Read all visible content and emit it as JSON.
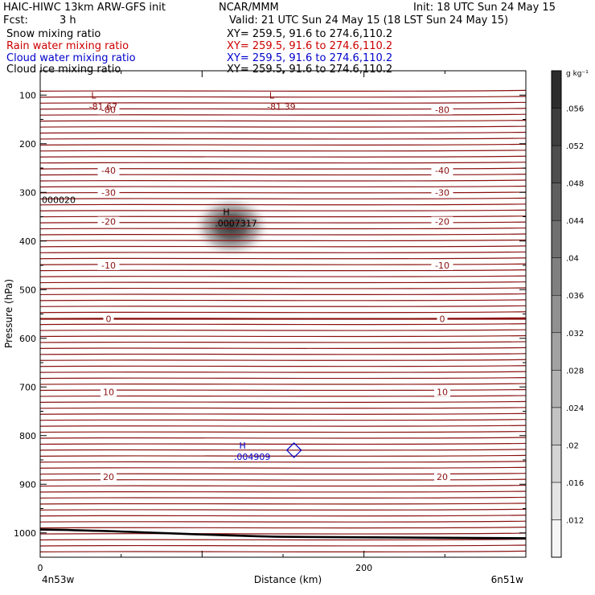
{
  "header": {
    "model": "HAIC-HIWC 13km ARW-GFS init",
    "org": "NCAR/MMM",
    "init": "Init: 18 UTC Sun 24 May 15",
    "fcst_label": "Fcst:",
    "fcst_value": "3 h",
    "valid": "Valid: 21 UTC Sun 24 May 15 (18 LST Sun 24 May 15)"
  },
  "fields": [
    {
      "name": "Snow mixing ratio",
      "xy": "XY= 259.5, 91.6 to 274.6,110.2",
      "color": "#000000"
    },
    {
      "name": "Rain water mixing ratio",
      "xy": "XY= 259.5, 91.6 to 274.6,110.2",
      "color": "#cc0000"
    },
    {
      "name": "Cloud water mixing ratio",
      "xy": "XY= 259.5, 91.6 to 274.6,110.2",
      "color": "#0000cc"
    },
    {
      "name": "Cloud ice mixing ratio",
      "xy": "XY= 259.5, 91.6 to 274.6,110.2",
      "color": "#000000"
    }
  ],
  "chart_data": {
    "type": "heatmap",
    "xlabel": "Distance (km)",
    "ylabel": "Pressure (hPa)",
    "x_left_label": "4n53w",
    "x_right_label": "6n51w",
    "xlim": [
      0,
      300
    ],
    "ylim": [
      1050,
      50
    ],
    "x_ticks": [
      0,
      200
    ],
    "y_ticks": [
      100,
      200,
      300,
      400,
      500,
      600,
      700,
      800,
      900,
      1000
    ],
    "colorbar": {
      "unit": "g kg⁻¹",
      "ticks": [
        ".012",
        ".016",
        ".02",
        ".024",
        ".028",
        ".032",
        ".036",
        ".04",
        ".044",
        ".048",
        ".052",
        ".056"
      ]
    },
    "temperature_contours": [
      {
        "label": "-80",
        "pressure": 130
      },
      {
        "label": "-40",
        "pressure": 255
      },
      {
        "label": "-30",
        "pressure": 300
      },
      {
        "label": "-20",
        "pressure": 360
      },
      {
        "label": "-10",
        "pressure": 450
      },
      {
        "label": "0",
        "pressure": 560
      },
      {
        "label": "10",
        "pressure": 710
      },
      {
        "label": "20",
        "pressure": 885
      }
    ],
    "extremes": [
      {
        "marker": "L",
        "value": "-81.67",
        "x": 33,
        "pressure": 110
      },
      {
        "marker": "L",
        "value": "-81.39",
        "x": 143,
        "pressure": 110
      },
      {
        "marker": "H",
        "value": ".0007317",
        "x": 115,
        "pressure": 350
      },
      {
        "marker": "H",
        "value": ".004909",
        "x": 125,
        "pressure": 830
      }
    ],
    "edge_label": {
      "value": "000020",
      "pressure": 315
    },
    "snow_maximum": {
      "x": 118,
      "pressure": 370
    }
  }
}
